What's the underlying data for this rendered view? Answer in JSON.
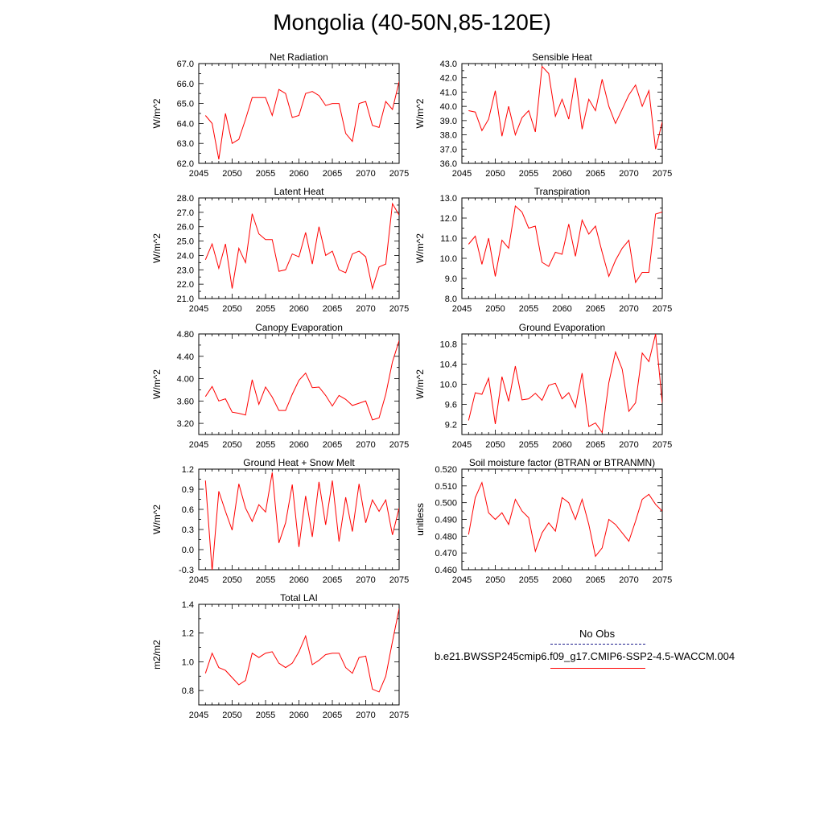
{
  "title": "Mongolia (40-50N,85-120E)",
  "legend": {
    "obs_label": "No Obs",
    "case_label": "b.e21.BWSSP245cmip6.f09_g17.CMIP6-SSP2-4.5-WACCM.004",
    "obs_color": "#1e1e8c",
    "case_color": "#ff0000"
  },
  "chart_data": [
    {
      "type": "line",
      "title": "Net Radiation",
      "xlabel": "",
      "ylabel": "W/m^2",
      "xlim": [
        2045,
        2075
      ],
      "ylim": [
        62.0,
        67.0
      ],
      "xticks": [
        2045,
        2050,
        2055,
        2060,
        2065,
        2070,
        2075
      ],
      "yticks": [
        "62.0",
        "63.0",
        "64.0",
        "65.0",
        "66.0",
        "67.0"
      ],
      "series": [
        {
          "color": "#ff0000",
          "x": [
            2046,
            2047,
            2048,
            2049,
            2050,
            2051,
            2052,
            2053,
            2054,
            2055,
            2056,
            2057,
            2058,
            2059,
            2060,
            2061,
            2062,
            2063,
            2064,
            2065,
            2066,
            2067,
            2068,
            2069,
            2070,
            2071,
            2072,
            2073,
            2074,
            2075
          ],
          "values": [
            64.4,
            64.0,
            62.2,
            64.5,
            63.0,
            63.2,
            64.2,
            65.3,
            65.3,
            65.3,
            64.4,
            65.7,
            65.5,
            64.3,
            64.4,
            65.5,
            65.6,
            65.4,
            64.9,
            65.0,
            65.0,
            63.5,
            63.1,
            65.0,
            65.1,
            63.9,
            63.8,
            65.1,
            64.7,
            66.1
          ]
        }
      ]
    },
    {
      "type": "line",
      "title": "Sensible Heat",
      "xlabel": "",
      "ylabel": "W/m^2",
      "xlim": [
        2045,
        2075
      ],
      "ylim": [
        36.0,
        43.0
      ],
      "xticks": [
        2045,
        2050,
        2055,
        2060,
        2065,
        2070,
        2075
      ],
      "yticks": [
        "36.0",
        "37.0",
        "38.0",
        "39.0",
        "40.0",
        "41.0",
        "42.0",
        "43.0"
      ],
      "series": [
        {
          "color": "#ff0000",
          "x": [
            2046,
            2047,
            2048,
            2049,
            2050,
            2051,
            2052,
            2053,
            2054,
            2055,
            2056,
            2057,
            2058,
            2059,
            2060,
            2061,
            2062,
            2063,
            2064,
            2065,
            2066,
            2067,
            2068,
            2069,
            2070,
            2071,
            2072,
            2073,
            2074,
            2075
          ],
          "values": [
            39.7,
            39.6,
            38.3,
            39.1,
            41.1,
            37.9,
            40.0,
            38.0,
            39.2,
            39.7,
            38.2,
            42.8,
            42.3,
            39.3,
            40.5,
            39.1,
            42.0,
            38.4,
            40.5,
            39.7,
            41.9,
            40.0,
            38.8,
            39.8,
            40.8,
            41.5,
            40.0,
            41.1,
            37.0,
            38.9
          ]
        }
      ]
    },
    {
      "type": "line",
      "title": "Latent Heat",
      "xlabel": "",
      "ylabel": "W/m^2",
      "xlim": [
        2045,
        2075
      ],
      "ylim": [
        21.0,
        28.0
      ],
      "xticks": [
        2045,
        2050,
        2055,
        2060,
        2065,
        2070,
        2075
      ],
      "yticks": [
        "21.0",
        "22.0",
        "23.0",
        "24.0",
        "25.0",
        "26.0",
        "27.0",
        "28.0"
      ],
      "series": [
        {
          "color": "#ff0000",
          "x": [
            2046,
            2047,
            2048,
            2049,
            2050,
            2051,
            2052,
            2053,
            2054,
            2055,
            2056,
            2057,
            2058,
            2059,
            2060,
            2061,
            2062,
            2063,
            2064,
            2065,
            2066,
            2067,
            2068,
            2069,
            2070,
            2071,
            2072,
            2073,
            2074,
            2075
          ],
          "values": [
            23.7,
            24.8,
            23.1,
            24.8,
            21.7,
            24.5,
            23.5,
            26.9,
            25.5,
            25.1,
            25.1,
            22.9,
            23.0,
            24.1,
            23.9,
            25.6,
            23.4,
            26.0,
            24.0,
            24.3,
            23.0,
            22.8,
            24.1,
            24.3,
            23.9,
            21.7,
            23.2,
            23.4,
            27.6,
            26.8
          ]
        }
      ]
    },
    {
      "type": "line",
      "title": "Transpiration",
      "xlabel": "",
      "ylabel": "W/m^2",
      "xlim": [
        2045,
        2075
      ],
      "ylim": [
        8.0,
        13.0
      ],
      "xticks": [
        2045,
        2050,
        2055,
        2060,
        2065,
        2070,
        2075
      ],
      "yticks": [
        "8.0",
        "9.0",
        "10.0",
        "11.0",
        "12.0",
        "13.0"
      ],
      "series": [
        {
          "color": "#ff0000",
          "x": [
            2046,
            2047,
            2048,
            2049,
            2050,
            2051,
            2052,
            2053,
            2054,
            2055,
            2056,
            2057,
            2058,
            2059,
            2060,
            2061,
            2062,
            2063,
            2064,
            2065,
            2066,
            2067,
            2068,
            2069,
            2070,
            2071,
            2072,
            2073,
            2074,
            2075
          ],
          "values": [
            10.7,
            11.1,
            9.7,
            11.0,
            9.1,
            10.9,
            10.5,
            12.6,
            12.3,
            11.5,
            11.6,
            9.8,
            9.6,
            10.3,
            10.2,
            11.7,
            10.1,
            11.9,
            11.2,
            11.6,
            10.3,
            9.1,
            9.9,
            10.5,
            10.9,
            8.8,
            9.3,
            9.3,
            12.2,
            12.3
          ]
        }
      ]
    },
    {
      "type": "line",
      "title": "Canopy Evaporation",
      "xlabel": "",
      "ylabel": "W/m^2",
      "xlim": [
        2045,
        2075
      ],
      "ylim": [
        3.0,
        4.8
      ],
      "xticks": [
        2045,
        2050,
        2055,
        2060,
        2065,
        2070,
        2075
      ],
      "yticks": [
        "3.20",
        "3.60",
        "4.00",
        "4.40",
        "4.80"
      ],
      "series": [
        {
          "color": "#ff0000",
          "x": [
            2046,
            2047,
            2048,
            2049,
            2050,
            2051,
            2052,
            2053,
            2054,
            2055,
            2056,
            2057,
            2058,
            2059,
            2060,
            2061,
            2062,
            2063,
            2064,
            2065,
            2066,
            2067,
            2068,
            2069,
            2070,
            2071,
            2072,
            2073,
            2074,
            2075
          ],
          "values": [
            3.68,
            3.86,
            3.6,
            3.64,
            3.4,
            3.38,
            3.35,
            3.98,
            3.54,
            3.85,
            3.67,
            3.43,
            3.43,
            3.72,
            3.97,
            4.1,
            3.84,
            3.85,
            3.7,
            3.51,
            3.7,
            3.63,
            3.52,
            3.56,
            3.6,
            3.26,
            3.3,
            3.72,
            4.3,
            4.68
          ]
        }
      ]
    },
    {
      "type": "line",
      "title": "Ground Evaporation",
      "xlabel": "",
      "ylabel": "W/m^2",
      "xlim": [
        2045,
        2075
      ],
      "ylim": [
        9.0,
        11.0
      ],
      "xticks": [
        2045,
        2050,
        2055,
        2060,
        2065,
        2070,
        2075
      ],
      "yticks": [
        "9.2",
        "9.6",
        "10.0",
        "10.4",
        "10.8"
      ],
      "series": [
        {
          "color": "#ff0000",
          "x": [
            2046,
            2047,
            2048,
            2049,
            2050,
            2051,
            2052,
            2053,
            2054,
            2055,
            2056,
            2057,
            2058,
            2059,
            2060,
            2061,
            2062,
            2063,
            2064,
            2065,
            2066,
            2067,
            2068,
            2069,
            2070,
            2071,
            2072,
            2073,
            2074,
            2075
          ],
          "values": [
            9.28,
            9.83,
            9.8,
            10.12,
            9.21,
            10.15,
            9.66,
            10.36,
            9.69,
            9.71,
            9.82,
            9.68,
            9.98,
            10.02,
            9.71,
            9.83,
            9.54,
            10.22,
            9.16,
            9.23,
            9.04,
            10.03,
            10.64,
            10.3,
            9.46,
            9.63,
            10.62,
            10.45,
            11.0,
            9.63
          ]
        }
      ]
    },
    {
      "type": "line",
      "title": "Ground Heat + Snow Melt",
      "xlabel": "",
      "ylabel": "W/m^2",
      "xlim": [
        2045,
        2075
      ],
      "ylim": [
        -0.3,
        1.2
      ],
      "xticks": [
        2045,
        2050,
        2055,
        2060,
        2065,
        2070,
        2075
      ],
      "yticks": [
        "-0.3",
        "0.0",
        "0.3",
        "0.6",
        "0.9",
        "1.2"
      ],
      "series": [
        {
          "color": "#ff0000",
          "x": [
            2046,
            2047,
            2048,
            2049,
            2050,
            2051,
            2052,
            2053,
            2054,
            2055,
            2056,
            2057,
            2058,
            2059,
            2060,
            2061,
            2062,
            2063,
            2064,
            2065,
            2066,
            2067,
            2068,
            2069,
            2070,
            2071,
            2072,
            2073,
            2074,
            2075
          ],
          "values": [
            1.03,
            -0.32,
            0.87,
            0.57,
            0.29,
            0.98,
            0.62,
            0.42,
            0.67,
            0.56,
            1.15,
            0.1,
            0.4,
            0.97,
            0.04,
            0.8,
            0.19,
            1.01,
            0.37,
            1.03,
            0.12,
            0.78,
            0.27,
            0.98,
            0.4,
            0.74,
            0.57,
            0.74,
            0.22,
            0.62
          ]
        }
      ]
    },
    {
      "type": "line",
      "title": "Soil moisture factor (BTRAN or BTRANMN)",
      "xlabel": "",
      "ylabel": "unitless",
      "xlim": [
        2045,
        2075
      ],
      "ylim": [
        0.46,
        0.52
      ],
      "xticks": [
        2045,
        2050,
        2055,
        2060,
        2065,
        2070,
        2075
      ],
      "yticks": [
        "0.460",
        "0.470",
        "0.480",
        "0.490",
        "0.500",
        "0.510",
        "0.520"
      ],
      "series": [
        {
          "color": "#ff0000",
          "x": [
            2046,
            2047,
            2048,
            2049,
            2050,
            2051,
            2052,
            2053,
            2054,
            2055,
            2056,
            2057,
            2058,
            2059,
            2060,
            2061,
            2062,
            2063,
            2064,
            2065,
            2066,
            2067,
            2068,
            2069,
            2070,
            2071,
            2072,
            2073,
            2074,
            2075
          ],
          "values": [
            0.481,
            0.503,
            0.512,
            0.494,
            0.49,
            0.494,
            0.487,
            0.502,
            0.495,
            0.491,
            0.471,
            0.482,
            0.488,
            0.483,
            0.503,
            0.5,
            0.49,
            0.502,
            0.487,
            0.468,
            0.473,
            0.49,
            0.487,
            0.482,
            0.477,
            0.489,
            0.502,
            0.505,
            0.499,
            0.495
          ]
        }
      ]
    },
    {
      "type": "line",
      "title": "Total LAI",
      "xlabel": "",
      "ylabel": "m2/m2",
      "xlim": [
        2045,
        2075
      ],
      "ylim": [
        0.7,
        1.4
      ],
      "xticks": [
        2045,
        2050,
        2055,
        2060,
        2065,
        2070,
        2075
      ],
      "yticks": [
        "0.8",
        "1.0",
        "1.2",
        "1.4"
      ],
      "series": [
        {
          "color": "#ff0000",
          "x": [
            2046,
            2047,
            2048,
            2049,
            2050,
            2051,
            2052,
            2053,
            2054,
            2055,
            2056,
            2057,
            2058,
            2059,
            2060,
            2061,
            2062,
            2063,
            2064,
            2065,
            2066,
            2067,
            2068,
            2069,
            2070,
            2071,
            2072,
            2073,
            2074,
            2075
          ],
          "values": [
            0.92,
            1.06,
            0.96,
            0.94,
            0.89,
            0.84,
            0.87,
            1.06,
            1.03,
            1.06,
            1.07,
            0.99,
            0.96,
            0.99,
            1.07,
            1.18,
            0.98,
            1.01,
            1.05,
            1.06,
            1.06,
            0.96,
            0.92,
            1.03,
            1.04,
            0.81,
            0.79,
            0.9,
            1.14,
            1.37
          ]
        }
      ]
    }
  ]
}
